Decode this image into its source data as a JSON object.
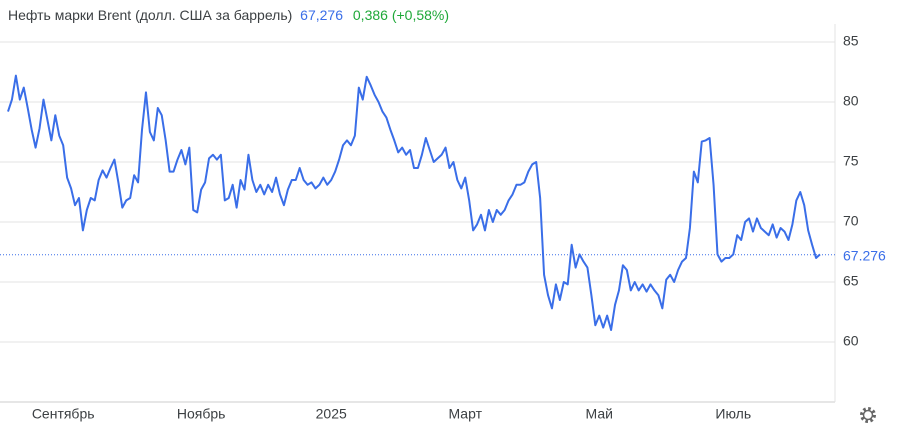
{
  "chart_data": {
    "type": "line",
    "title": "Нефть марки Brent (долл. США за баррель)",
    "price": "67,276",
    "change": "0,386 (+0,58%)",
    "last": 67.276,
    "color": "#3a6ee8",
    "categories": [
      null,
      null,
      null,
      null,
      null,
      null,
      null,
      null,
      null,
      null,
      null,
      null,
      null,
      null,
      "Сентябрь",
      null,
      null,
      null,
      null,
      null,
      null,
      null,
      null,
      null,
      null,
      null,
      null,
      null,
      null,
      null,
      null,
      null,
      null,
      null,
      null,
      null,
      null,
      null,
      null,
      null,
      null,
      null,
      null,
      null,
      null,
      null,
      null,
      null,
      null,
      "Ноябрь",
      null,
      null,
      null,
      null,
      null,
      null,
      null,
      null,
      null,
      null,
      null,
      null,
      null,
      null,
      null,
      null,
      null,
      null,
      null,
      null,
      null,
      null,
      null,
      null,
      null,
      null,
      null,
      null,
      null,
      null,
      null,
      null,
      "2025",
      null,
      null,
      null,
      null,
      null,
      null,
      null,
      null,
      null,
      null,
      null,
      null,
      null,
      null,
      null,
      null,
      null,
      null,
      null,
      null,
      null,
      null,
      null,
      null,
      null,
      null,
      null,
      null,
      null,
      null,
      null,
      null,
      null,
      "Март",
      null,
      null,
      null,
      null,
      null,
      null,
      null,
      null,
      null,
      null,
      null,
      null,
      null,
      null,
      null,
      null,
      null,
      null,
      null,
      null,
      null,
      null,
      null,
      null,
      null,
      null,
      null,
      null,
      null,
      null,
      null,
      null,
      null,
      "Май",
      null,
      null,
      null,
      null,
      null,
      null,
      null,
      null,
      null,
      null,
      null,
      null,
      null,
      null,
      null,
      null,
      null,
      null,
      null,
      null,
      null,
      null,
      null,
      null,
      null,
      null,
      null,
      null,
      null,
      null,
      null,
      null,
      null,
      "Июль",
      null,
      null,
      null,
      null,
      null,
      null,
      null,
      null,
      null,
      null,
      null,
      null,
      null,
      null,
      null,
      null,
      null,
      null,
      null,
      null,
      null,
      null
    ],
    "values": [
      79.2,
      80.2,
      82.2,
      80.2,
      81.2,
      79.5,
      77.7,
      76.2,
      77.8,
      80.2,
      78.5,
      76.8,
      78.9,
      77.2,
      76.4,
      73.7,
      72.8,
      71.4,
      72.0,
      69.3,
      71.0,
      72.0,
      71.8,
      73.5,
      74.3,
      73.7,
      74.5,
      75.2,
      73.3,
      71.2,
      71.8,
      72.0,
      73.9,
      73.3,
      77.7,
      80.8,
      77.5,
      76.8,
      79.5,
      78.9,
      76.8,
      74.2,
      74.2,
      75.2,
      76.0,
      74.8,
      76.2,
      71.0,
      70.8,
      72.7,
      73.3,
      75.3,
      75.6,
      75.2,
      75.6,
      71.8,
      72.0,
      73.1,
      71.2,
      73.5,
      72.7,
      75.6,
      73.5,
      72.5,
      73.1,
      72.3,
      73.1,
      72.5,
      73.7,
      72.3,
      71.4,
      72.7,
      73.5,
      73.5,
      74.5,
      73.5,
      73.1,
      73.3,
      72.8,
      73.1,
      73.7,
      73.1,
      73.5,
      74.2,
      75.2,
      76.4,
      76.8,
      76.4,
      77.2,
      81.2,
      80.2,
      82.1,
      81.4,
      80.6,
      80.0,
      79.2,
      78.7,
      77.7,
      76.8,
      75.8,
      76.2,
      75.6,
      76.0,
      74.5,
      74.5,
      75.6,
      77.0,
      76.0,
      75.0,
      75.3,
      75.6,
      76.2,
      74.5,
      75.0,
      73.5,
      72.8,
      73.7,
      71.8,
      69.3,
      69.8,
      70.6,
      69.3,
      71.0,
      70.0,
      71.0,
      70.6,
      71.0,
      71.8,
      72.3,
      73.1,
      73.1,
      73.3,
      74.2,
      74.8,
      75.0,
      72.0,
      65.6,
      63.9,
      62.8,
      64.8,
      63.5,
      65.0,
      64.8,
      68.1,
      66.2,
      67.3,
      66.7,
      66.2,
      63.9,
      61.4,
      62.2,
      61.2,
      62.2,
      61.0,
      63.1,
      64.3,
      66.4,
      66.0,
      64.3,
      65.0,
      64.3,
      64.8,
      64.2,
      64.8,
      64.3,
      63.9,
      62.8,
      65.2,
      65.6,
      65.0,
      66.0,
      66.7,
      67.0,
      69.5,
      74.2,
      73.3,
      76.7,
      76.8,
      77.0,
      73.1,
      67.3,
      66.7,
      67.0,
      67.0,
      67.3,
      68.9,
      68.5,
      70.0,
      70.3,
      69.2,
      70.3,
      69.5,
      69.2,
      68.9,
      69.8,
      68.7,
      69.5,
      69.2,
      68.5,
      69.8,
      71.8,
      72.5,
      71.4,
      69.3,
      68.1,
      67.0,
      67.3
    ],
    "ylim": [
      55,
      86.5
    ],
    "yticks": [
      60,
      65,
      70,
      75,
      80,
      85
    ],
    "grid": true
  }
}
